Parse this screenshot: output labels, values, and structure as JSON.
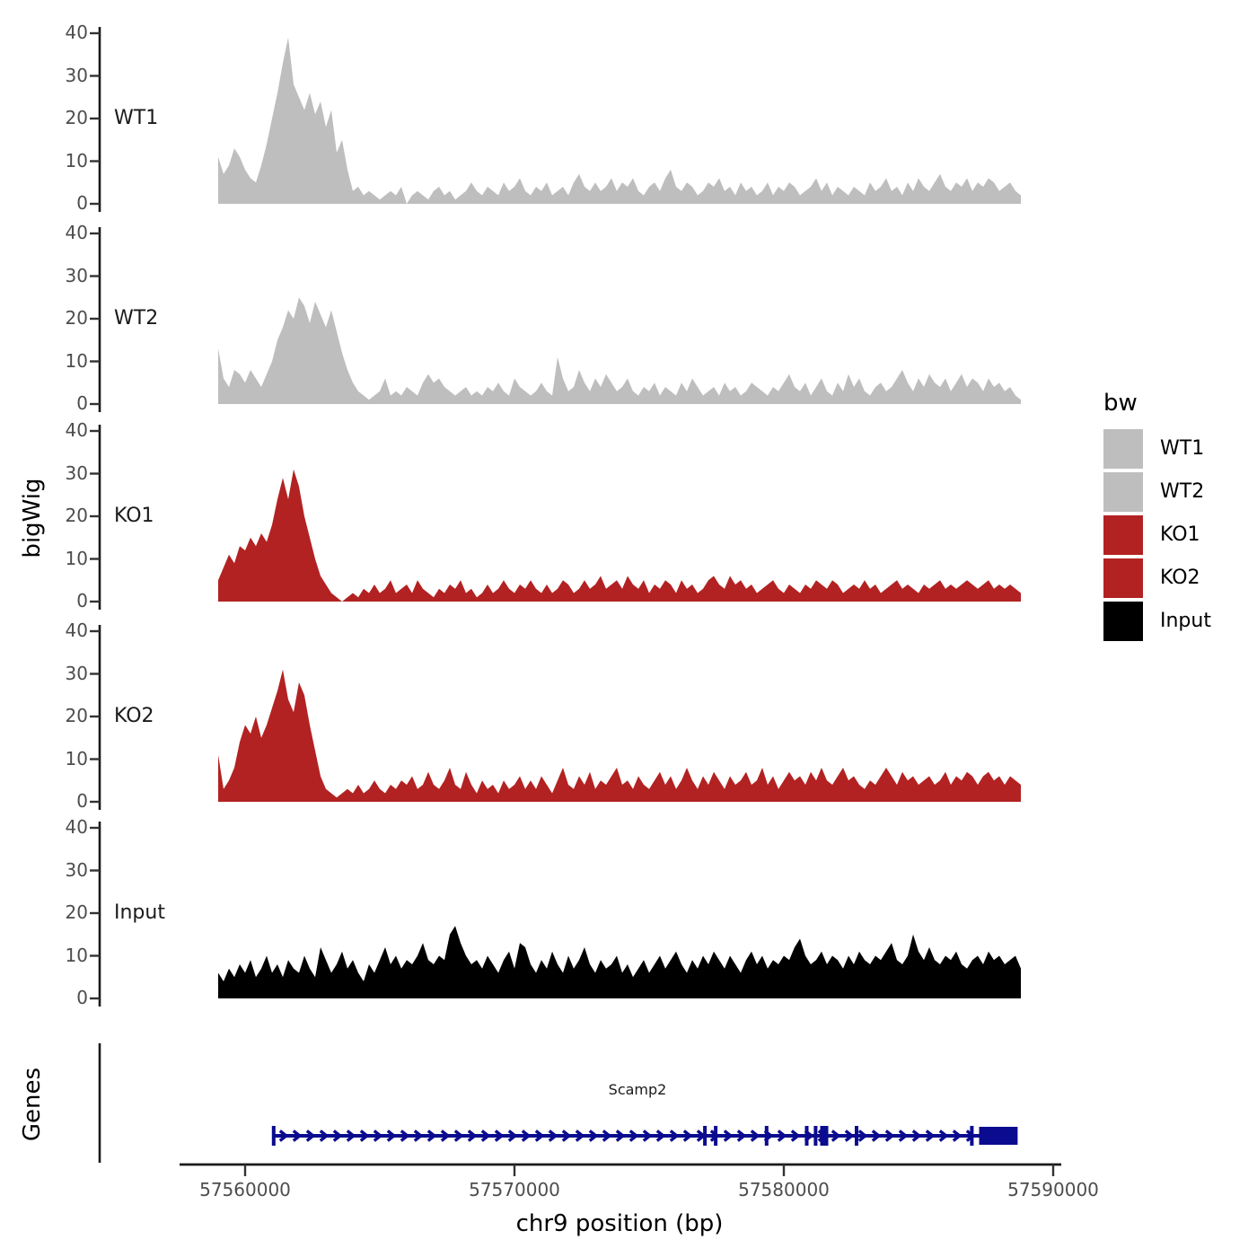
{
  "figure": {
    "y_axis_title": "bigWig",
    "genes_axis_title": "Genes",
    "x_axis_title": "chr9 position (bp)"
  },
  "legend": {
    "title": "bw",
    "items": [
      {
        "label": "WT1",
        "color": "#BEBEBE"
      },
      {
        "label": "WT2",
        "color": "#BEBEBE"
      },
      {
        "label": "KO1",
        "color": "#B22222"
      },
      {
        "label": "KO2",
        "color": "#B22222"
      },
      {
        "label": "Input",
        "color": "#000000"
      }
    ]
  },
  "chart_data": {
    "type": "area",
    "title": "",
    "xlabel": "chr9 position (bp)",
    "ylabel": "bigWig",
    "ylim": [
      0,
      40
    ],
    "y_ticks": [
      0,
      10,
      20,
      30,
      40
    ],
    "x_ticks": [
      57560000,
      57570000,
      57580000,
      57590000
    ],
    "x_tick_labels": [
      "57560000",
      "57570000",
      "57580000",
      "57590000"
    ],
    "x_start": 57559000,
    "x_step": 200,
    "series": [
      {
        "name": "WT1",
        "color": "#BEBEBE",
        "values": [
          11,
          7,
          9,
          13,
          11,
          8,
          6,
          5,
          9,
          14,
          20,
          26,
          33,
          39,
          28,
          25,
          22,
          26,
          21,
          24,
          18,
          22,
          12,
          15,
          8,
          3,
          4,
          2,
          3,
          2,
          1,
          2,
          3,
          2,
          4,
          0,
          2,
          3,
          2,
          1,
          3,
          4,
          2,
          3,
          1,
          2,
          3,
          5,
          3,
          2,
          4,
          3,
          2,
          5,
          3,
          4,
          6,
          3,
          2,
          4,
          3,
          5,
          2,
          3,
          4,
          2,
          5,
          7,
          4,
          3,
          5,
          3,
          4,
          6,
          3,
          5,
          4,
          6,
          3,
          2,
          4,
          5,
          3,
          6,
          8,
          4,
          3,
          5,
          4,
          2,
          3,
          5,
          4,
          6,
          3,
          4,
          2,
          5,
          3,
          4,
          2,
          3,
          5,
          2,
          4,
          3,
          5,
          4,
          2,
          3,
          4,
          6,
          3,
          5,
          2,
          4,
          3,
          2,
          4,
          3,
          2,
          5,
          3,
          4,
          6,
          3,
          4,
          2,
          5,
          3,
          6,
          4,
          3,
          5,
          7,
          4,
          3,
          5,
          4,
          6,
          3,
          5,
          4,
          6,
          5,
          3,
          4,
          5,
          3,
          2
        ]
      },
      {
        "name": "WT2",
        "color": "#BEBEBE",
        "values": [
          13,
          6,
          4,
          8,
          7,
          5,
          8,
          6,
          4,
          7,
          10,
          15,
          18,
          22,
          20,
          25,
          23,
          19,
          24,
          21,
          18,
          22,
          17,
          12,
          8,
          5,
          3,
          2,
          1,
          2,
          3,
          6,
          2,
          3,
          2,
          4,
          3,
          2,
          5,
          7,
          5,
          6,
          4,
          3,
          2,
          3,
          4,
          2,
          3,
          2,
          4,
          3,
          5,
          3,
          2,
          6,
          4,
          3,
          2,
          3,
          5,
          3,
          2,
          11,
          6,
          3,
          4,
          8,
          5,
          3,
          6,
          4,
          7,
          5,
          3,
          4,
          6,
          3,
          2,
          4,
          3,
          5,
          2,
          4,
          3,
          2,
          5,
          3,
          6,
          4,
          2,
          3,
          4,
          2,
          5,
          3,
          4,
          2,
          3,
          5,
          4,
          3,
          2,
          4,
          3,
          5,
          7,
          4,
          3,
          5,
          2,
          4,
          6,
          3,
          2,
          5,
          3,
          7,
          4,
          6,
          3,
          2,
          4,
          5,
          3,
          4,
          6,
          8,
          5,
          3,
          6,
          4,
          7,
          5,
          4,
          6,
          3,
          5,
          7,
          4,
          6,
          5,
          3,
          6,
          4,
          5,
          3,
          4,
          2,
          1
        ]
      },
      {
        "name": "KO1",
        "color": "#B22222",
        "values": [
          5,
          8,
          11,
          9,
          13,
          12,
          15,
          13,
          16,
          14,
          18,
          24,
          29,
          24,
          31,
          27,
          20,
          15,
          10,
          6,
          4,
          2,
          1,
          0,
          1,
          2,
          1,
          3,
          2,
          4,
          2,
          3,
          5,
          2,
          3,
          4,
          2,
          5,
          3,
          2,
          1,
          3,
          2,
          4,
          3,
          5,
          2,
          3,
          1,
          2,
          4,
          2,
          3,
          5,
          3,
          2,
          4,
          3,
          5,
          3,
          2,
          4,
          2,
          3,
          5,
          4,
          2,
          3,
          5,
          3,
          4,
          6,
          3,
          4,
          5,
          3,
          6,
          4,
          3,
          5,
          2,
          4,
          3,
          5,
          4,
          2,
          5,
          3,
          4,
          2,
          3,
          5,
          6,
          4,
          3,
          6,
          4,
          5,
          3,
          4,
          2,
          3,
          4,
          5,
          3,
          2,
          4,
          3,
          2,
          4,
          3,
          5,
          4,
          3,
          5,
          4,
          2,
          3,
          4,
          3,
          5,
          3,
          4,
          2,
          3,
          4,
          5,
          3,
          4,
          3,
          2,
          4,
          3,
          4,
          5,
          3,
          4,
          3,
          4,
          5,
          4,
          3,
          4,
          5,
          3,
          4,
          3,
          4,
          3,
          2
        ]
      },
      {
        "name": "KO2",
        "color": "#B22222",
        "values": [
          11,
          3,
          5,
          8,
          14,
          18,
          16,
          20,
          15,
          18,
          22,
          26,
          31,
          24,
          21,
          28,
          25,
          18,
          12,
          6,
          3,
          2,
          1,
          2,
          3,
          2,
          4,
          2,
          3,
          5,
          3,
          2,
          4,
          3,
          5,
          4,
          6,
          3,
          4,
          7,
          4,
          3,
          5,
          8,
          4,
          3,
          7,
          4,
          2,
          5,
          3,
          4,
          2,
          5,
          3,
          4,
          6,
          3,
          5,
          3,
          6,
          4,
          2,
          5,
          8,
          4,
          3,
          6,
          4,
          7,
          3,
          5,
          4,
          6,
          8,
          4,
          5,
          3,
          6,
          4,
          3,
          5,
          7,
          4,
          6,
          3,
          5,
          8,
          5,
          3,
          6,
          4,
          7,
          5,
          3,
          6,
          4,
          5,
          7,
          4,
          5,
          8,
          4,
          6,
          3,
          5,
          7,
          5,
          6,
          4,
          7,
          5,
          8,
          5,
          4,
          6,
          8,
          5,
          6,
          4,
          3,
          5,
          4,
          6,
          8,
          6,
          4,
          7,
          5,
          6,
          4,
          5,
          6,
          4,
          5,
          7,
          4,
          6,
          5,
          7,
          6,
          4,
          6,
          7,
          5,
          6,
          4,
          6,
          5,
          4
        ]
      },
      {
        "name": "Input",
        "color": "#000000",
        "values": [
          6,
          4,
          7,
          5,
          8,
          6,
          9,
          5,
          7,
          10,
          6,
          8,
          5,
          9,
          7,
          6,
          10,
          7,
          5,
          12,
          9,
          6,
          8,
          11,
          7,
          9,
          6,
          4,
          8,
          6,
          9,
          12,
          8,
          10,
          7,
          9,
          8,
          10,
          13,
          9,
          8,
          10,
          9,
          15,
          17,
          13,
          10,
          8,
          9,
          7,
          10,
          8,
          6,
          9,
          11,
          7,
          13,
          12,
          8,
          6,
          9,
          7,
          11,
          8,
          6,
          10,
          7,
          9,
          12,
          8,
          6,
          9,
          7,
          8,
          10,
          6,
          8,
          5,
          7,
          9,
          6,
          8,
          10,
          7,
          9,
          11,
          8,
          6,
          9,
          7,
          10,
          8,
          11,
          9,
          7,
          10,
          8,
          6,
          9,
          11,
          8,
          10,
          7,
          9,
          8,
          10,
          9,
          12,
          14,
          10,
          8,
          9,
          11,
          8,
          10,
          9,
          7,
          10,
          8,
          11,
          9,
          8,
          10,
          9,
          11,
          13,
          9,
          8,
          10,
          15,
          11,
          9,
          12,
          9,
          8,
          10,
          9,
          11,
          8,
          7,
          9,
          10,
          8,
          11,
          9,
          10,
          8,
          9,
          10,
          7
        ]
      }
    ],
    "gene": {
      "name": "Scamp2",
      "color": "#0B0B8F",
      "strand": "+",
      "start": 57561060,
      "end": 57588680,
      "exon_ticks": [
        57561060,
        57577070,
        57577470,
        57579360,
        57580850,
        57581180,
        57582700,
        57586980
      ],
      "thick_block": {
        "start": 57581350,
        "end": 57581650
      },
      "end_box": {
        "start": 57587250,
        "end": 57588680
      }
    }
  }
}
